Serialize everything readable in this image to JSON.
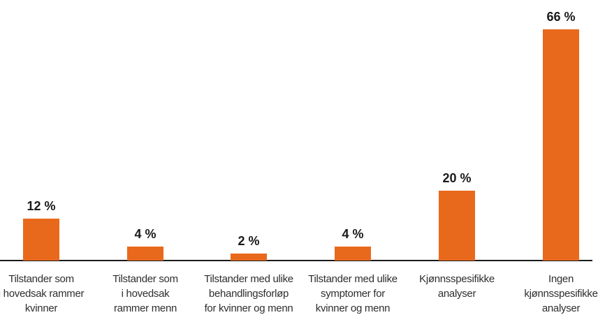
{
  "chart_data": {
    "type": "bar",
    "title": "",
    "xlabel": "",
    "ylabel": "",
    "unit": "%",
    "categories": [
      "Tilstander som\ni hovedsak rammer\nkvinner",
      "Tilstander som\ni hovedsak\nrammer menn",
      "Tilstander med ulike\nbehandlingsforløp\nfor kvinner og menn",
      "Tilstander med ulike\nsymptomer for\nkvinner og menn",
      "Kjønnsspesifikke\nanalyser",
      "Ingen\nkjønnsspesifikke\nanalyser"
    ],
    "values": [
      12,
      4,
      2,
      4,
      20,
      66
    ],
    "value_labels": [
      "12 %",
      "4 %",
      "2 %",
      "4 %",
      "20 %",
      "66 %"
    ],
    "ylim": [
      0,
      70
    ],
    "grid": false,
    "legend": null,
    "bar_color": "#E9691C",
    "axis_line_color": "#1a1a1a",
    "value_label_color": "#1a1a1a",
    "category_label_color": "#2e2e2e",
    "background": "#ffffff"
  }
}
